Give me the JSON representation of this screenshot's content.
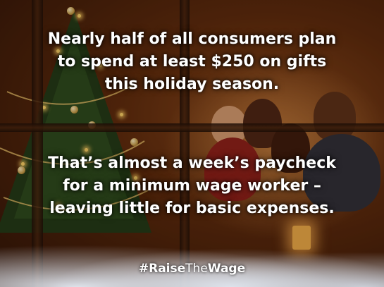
{
  "message": {
    "line1": "Nearly half of all consumers plan",
    "line2": "to spend at least $250 on gifts",
    "line3": "this holiday season.",
    "line4": "That’s almost a week’s paycheck",
    "line5": "for a minimum wage worker –",
    "line6": "leaving little for basic expenses."
  },
  "hashtag": {
    "prefix": "#Raise",
    "middle": "The",
    "suffix": "Wage"
  }
}
